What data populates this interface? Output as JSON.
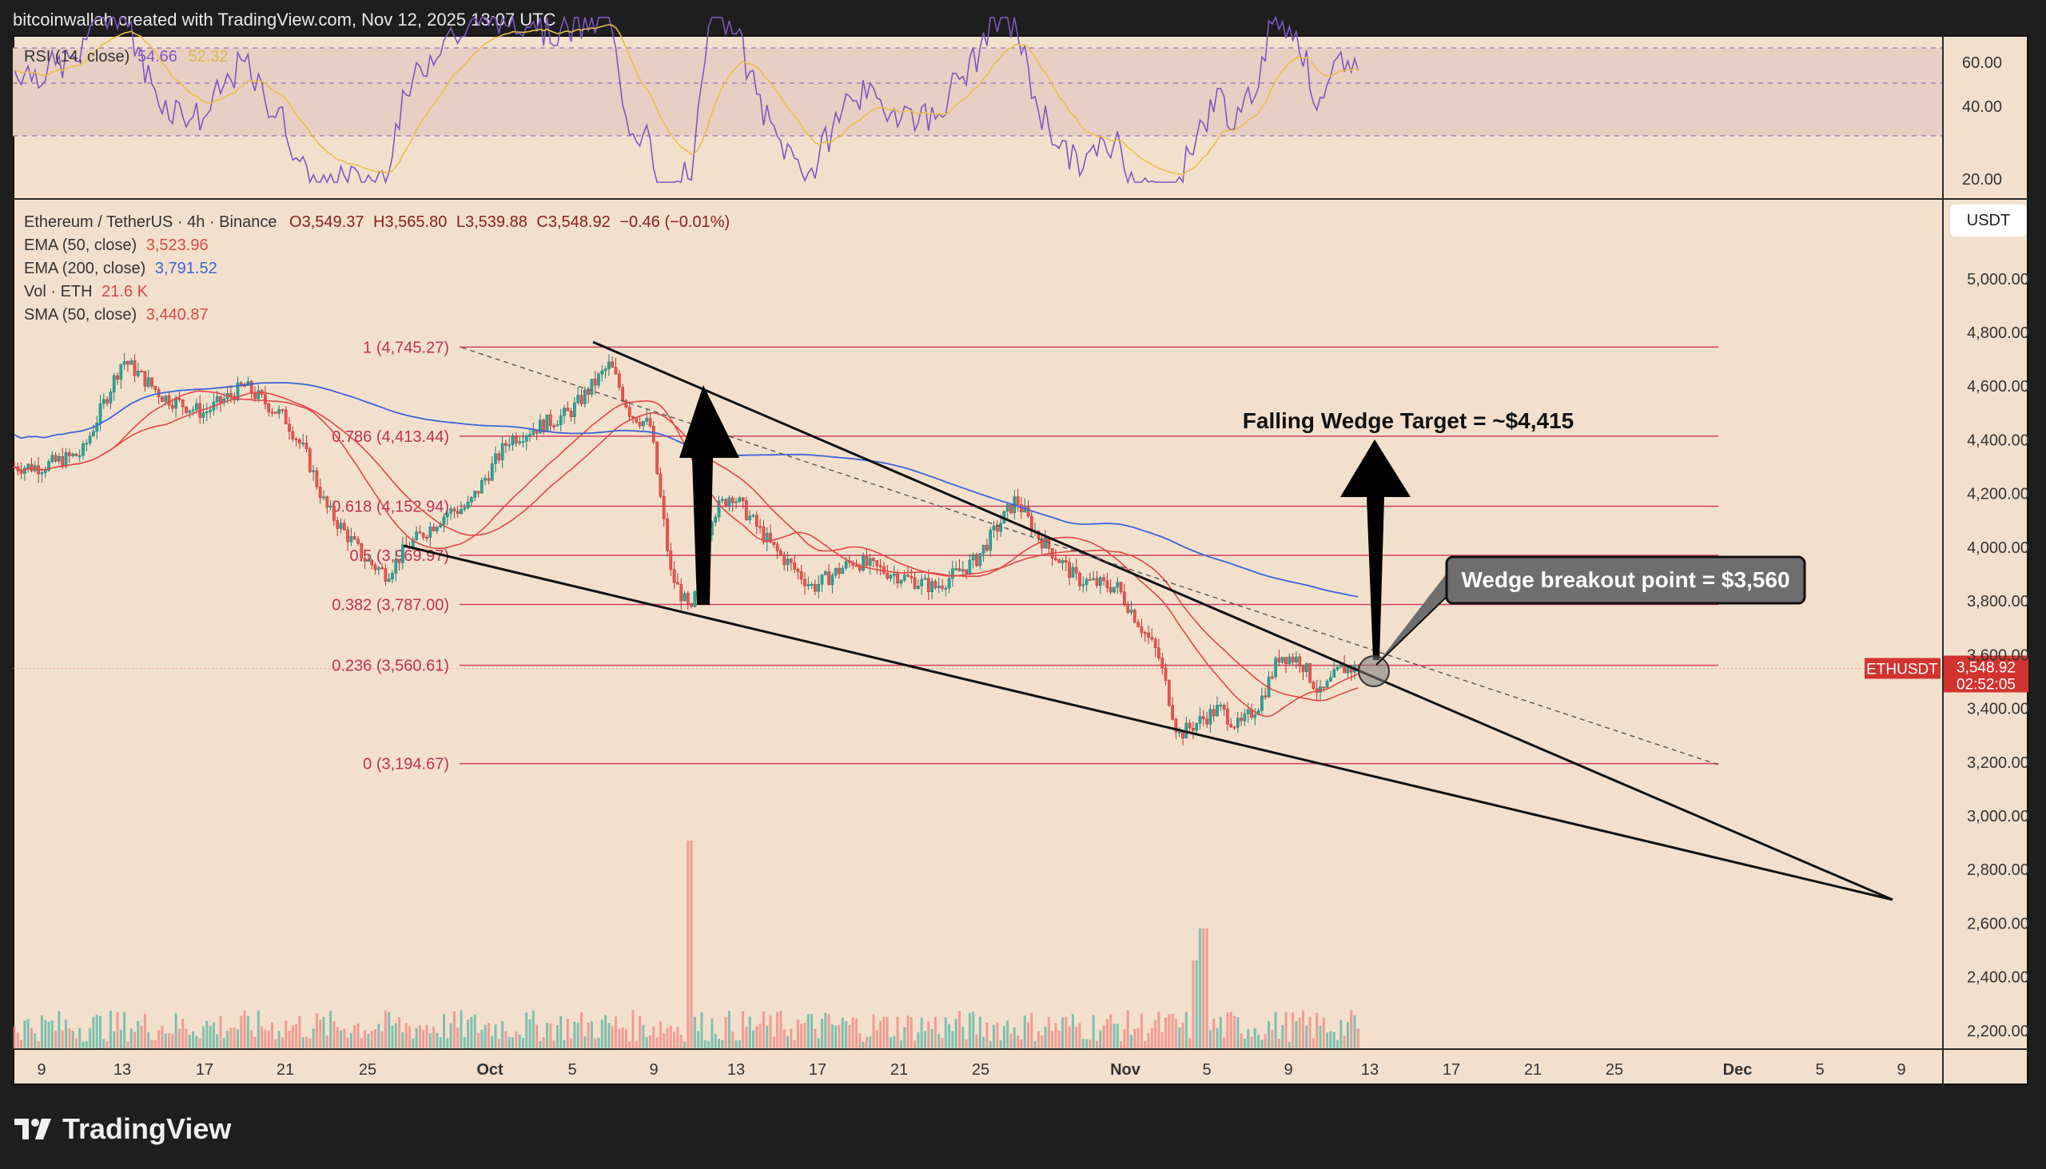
{
  "header": {
    "attribution": "bitcoinwallah created with TradingView.com, Nov 12, 2025 13:07 UTC"
  },
  "footer": {
    "brand": "TradingView"
  },
  "rsi_panel": {
    "label": "RSI (14, close)",
    "value1": "54.66",
    "value2": "52.32",
    "ticks": [
      "60.00",
      "40.00",
      "20.00"
    ]
  },
  "main_panel": {
    "symbol_line": "Ethereum / TetherUS · 4h · Binance",
    "ohlc": {
      "open": "O3,549.37",
      "high": "H3,565.80",
      "low": "L3,539.88",
      "close": "C3,548.92",
      "change": "−0.46 (−0.01%)"
    },
    "indicators": [
      {
        "label": "EMA (50, close)",
        "value": "3,523.96",
        "color": "#d94a4a"
      },
      {
        "label": "EMA (200, close)",
        "value": "3,791.52",
        "color": "#3b63d8"
      },
      {
        "label": "Vol · ETH",
        "value": "21.6 K",
        "color": "#d94a4a"
      },
      {
        "label": "SMA (50, close)",
        "value": "3,440.87",
        "color": "#d94a4a"
      }
    ],
    "currency_button": "USDT",
    "price_label": {
      "symbol": "ETHUSDT",
      "price": "3,548.92",
      "countdown": "02:52:05"
    },
    "price_ticks": [
      "5,000.00",
      "4,800.00",
      "4,600.00",
      "4,400.00",
      "4,200.00",
      "4,000.00",
      "3,800.00",
      "3,600.00",
      "3,400.00",
      "3,200.00",
      "3,000.00",
      "2,800.00",
      "2,600.00",
      "2,400.00",
      "2,200.00"
    ],
    "x_ticks": [
      "9",
      "13",
      "17",
      "21",
      "25",
      "Oct",
      "5",
      "9",
      "13",
      "17",
      "21",
      "25",
      "Nov",
      "5",
      "9",
      "13",
      "17",
      "21",
      "25",
      "Dec",
      "5",
      "9"
    ],
    "annotations": {
      "target": "Falling Wedge Target = ~$4,415",
      "breakout": "Wedge breakout point = $3,560"
    }
  },
  "chart_data": {
    "type": "candlestick",
    "title": "Ethereum / TetherUS · 4h · Binance",
    "ylabel": "USDT",
    "ylim": [
      2100,
      5150
    ],
    "fib_levels": [
      {
        "label": "1 (4,745.27)",
        "value": 4745.27
      },
      {
        "label": "0.786 (4,413.44)",
        "value": 4413.44
      },
      {
        "label": "0.618 (4,152.94)",
        "value": 4152.94
      },
      {
        "label": "0.5 (3,969.97)",
        "value": 3969.97
      },
      {
        "label": "0.382 (3,787.00)",
        "value": 3787.0
      },
      {
        "label": "0.236 (3,560.61)",
        "value": 3560.61
      },
      {
        "label": "0 (3,194.67)",
        "value": 3194.67
      }
    ],
    "price_path": [
      [
        "Sep 9",
        4300
      ],
      [
        "Sep 11",
        4350
      ],
      [
        "Sep 13",
        4700
      ],
      [
        "Sep 15",
        4560
      ],
      [
        "Sep 17",
        4500
      ],
      [
        "Sep 19",
        4600
      ],
      [
        "Sep 21",
        4480
      ],
      [
        "Sep 22",
        4350
      ],
      [
        "Sep 23",
        4150
      ],
      [
        "Sep 25",
        3950
      ],
      [
        "Sep 26",
        3900
      ],
      [
        "Sep 27",
        4000
      ],
      [
        "Sep 29",
        4130
      ],
      [
        "Sep 30",
        4150
      ],
      [
        "Oct 2",
        4400
      ],
      [
        "Oct 5",
        4500
      ],
      [
        "Oct 7",
        4680
      ],
      [
        "Oct 8",
        4500
      ],
      [
        "Oct 9",
        4450
      ],
      [
        "Oct 10",
        3900
      ],
      [
        "Oct 11",
        3750
      ],
      [
        "Oct 12",
        4120
      ],
      [
        "Oct 13",
        4200
      ],
      [
        "Oct 15",
        4000
      ],
      [
        "Oct 17",
        3850
      ],
      [
        "Oct 19",
        3950
      ],
      [
        "Oct 21",
        3900
      ],
      [
        "Oct 23",
        3850
      ],
      [
        "Oct 25",
        3950
      ],
      [
        "Oct 27",
        4180
      ],
      [
        "Oct 28",
        4050
      ],
      [
        "Oct 30",
        3880
      ],
      [
        "Nov 1",
        3850
      ],
      [
        "Nov 3",
        3600
      ],
      [
        "Nov 4",
        3300
      ],
      [
        "Nov 5",
        3350
      ],
      [
        "Nov 6",
        3400
      ],
      [
        "Nov 7",
        3330
      ],
      [
        "Nov 8",
        3420
      ],
      [
        "Nov 9",
        3600
      ],
      [
        "Nov 10",
        3580
      ],
      [
        "Nov 11",
        3450
      ],
      [
        "Nov 12",
        3548.92
      ]
    ],
    "rsi_last": 54.66,
    "rsi_ma_last": 52.32,
    "ema50_last": 3523.96,
    "ema200_last": 3791.52,
    "sma50_last": 3440.87,
    "volume_last": "21.6 K",
    "target_price": 4415,
    "breakout_price": 3560
  }
}
